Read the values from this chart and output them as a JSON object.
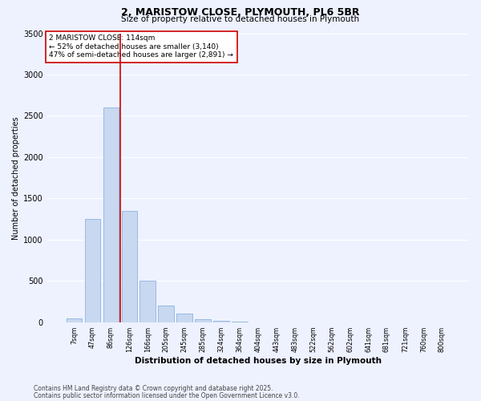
{
  "title1": "2, MARISTOW CLOSE, PLYMOUTH, PL6 5BR",
  "title2": "Size of property relative to detached houses in Plymouth",
  "xlabel": "Distribution of detached houses by size in Plymouth",
  "ylabel": "Number of detached properties",
  "bar_labels": [
    "7sqm",
    "47sqm",
    "86sqm",
    "126sqm",
    "166sqm",
    "205sqm",
    "245sqm",
    "285sqm",
    "324sqm",
    "364sqm",
    "404sqm",
    "443sqm",
    "483sqm",
    "522sqm",
    "562sqm",
    "602sqm",
    "641sqm",
    "681sqm",
    "721sqm",
    "760sqm",
    "800sqm"
  ],
  "bar_values": [
    50,
    1250,
    2600,
    1350,
    500,
    200,
    110,
    40,
    15,
    5,
    2,
    1,
    0,
    0,
    0,
    0,
    0,
    0,
    0,
    0,
    0
  ],
  "bar_color": "#c8d8f0",
  "bar_edge_color": "#8ab4e0",
  "bar_linewidth": 0.6,
  "vline_color": "#cc0000",
  "annotation_title": "2 MARISTOW CLOSE: 114sqm",
  "annotation_line1": "← 52% of detached houses are smaller (3,140)",
  "annotation_line2": "47% of semi-detached houses are larger (2,891) →",
  "annotation_box_color": "#ffffff",
  "annotation_box_edge": "#cc0000",
  "ylim": [
    0,
    3500
  ],
  "yticks": [
    0,
    500,
    1000,
    1500,
    2000,
    2500,
    3000,
    3500
  ],
  "bg_color": "#eef2ff",
  "footer1": "Contains HM Land Registry data © Crown copyright and database right 2025.",
  "footer2": "Contains public sector information licensed under the Open Government Licence v3.0."
}
